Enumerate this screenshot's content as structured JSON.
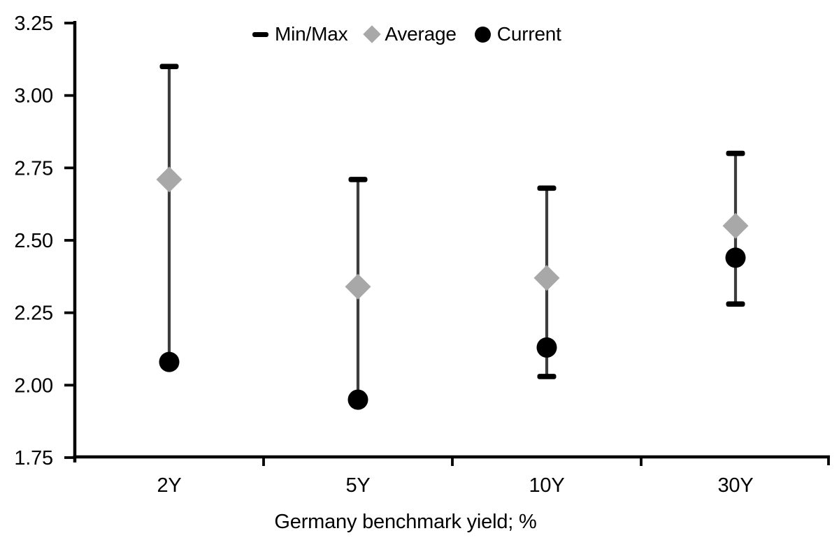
{
  "chart_data": {
    "type": "scatter",
    "subtype": "min-max-range-markers",
    "title": "",
    "xlabel": "Germany benchmark yield; %",
    "ylabel": "",
    "categories": [
      "2Y",
      "5Y",
      "10Y",
      "30Y"
    ],
    "series": [
      {
        "name": "Min/Max",
        "marker": "dash",
        "max": [
          3.1,
          2.71,
          2.68,
          2.8
        ],
        "min": [
          2.08,
          1.95,
          2.03,
          2.28
        ],
        "min_cap_visible": [
          false,
          false,
          true,
          true
        ]
      },
      {
        "name": "Average",
        "marker": "diamond",
        "values": [
          2.71,
          2.34,
          2.37,
          2.55
        ]
      },
      {
        "name": "Current",
        "marker": "circle",
        "values": [
          2.08,
          1.95,
          2.13,
          2.44
        ]
      }
    ],
    "ylim": [
      1.75,
      3.25
    ],
    "yticks": [
      3.25,
      3.0,
      2.75,
      2.5,
      2.25,
      2.0,
      1.75
    ],
    "ytick_labels": [
      "3.25",
      "3.00",
      "2.75",
      "2.50",
      "2.25",
      "2.00",
      "1.75"
    ],
    "legend_position": "top",
    "grid": false,
    "colors": {
      "average": "#a8a8a8",
      "current": "#000000",
      "range_line": "#3d3d3d",
      "cap": "#000000",
      "axis": "#000000",
      "text": "#000000",
      "background": "#ffffff"
    }
  }
}
